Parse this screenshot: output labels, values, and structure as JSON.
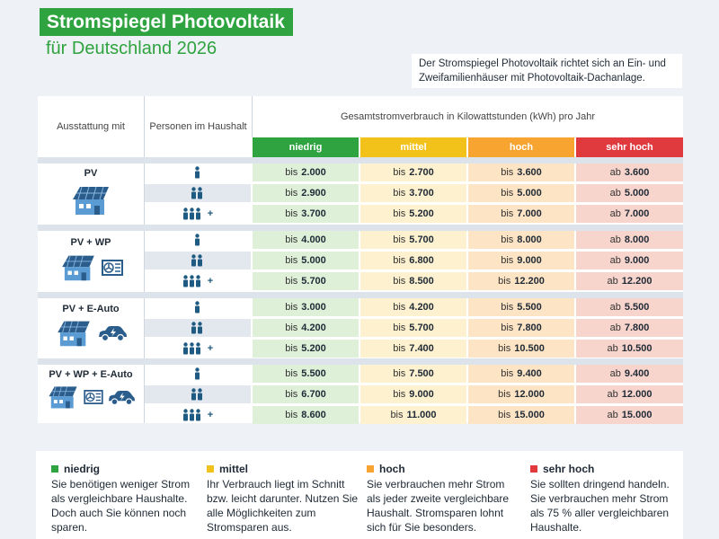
{
  "title": "Stromspiegel Photovoltaik",
  "subtitle": "für Deutschland 2026",
  "note": "Der Stromspiegel Photovoltaik richtet sich an Ein- und Zweifamilienhäuser mit Photovoltaik-Dachanlage.",
  "headers": {
    "equipment": "Ausstattung mit",
    "persons": "Personen im Haushalt",
    "consumption": "Gesamtstromverbrauch in Kilowattstunden (kWh) pro Jahr"
  },
  "colors": {
    "niedrig": "#2ea33f",
    "mittel": "#f2c21b",
    "hoch": "#f7a430",
    "sehr_hoch": "#e0393e",
    "niedrig_bg": "#dff0d9",
    "mittel_bg": "#fdf1cf",
    "hoch_bg": "#fde4c4",
    "sehr_hoch_bg": "#f8d5cc"
  },
  "chart_data": {
    "type": "table",
    "title": "Stromspiegel Photovoltaik für Deutschland 2026",
    "unit": "kWh pro Jahr",
    "categories": [
      "niedrig",
      "mittel",
      "hoch",
      "sehr hoch"
    ],
    "groups": [
      {
        "name": "PV",
        "rows": [
          {
            "persons": "1",
            "persons_plus": "",
            "values": [
              {
                "prefix": "bis",
                "value": "2.000"
              },
              {
                "prefix": "bis",
                "value": "2.700"
              },
              {
                "prefix": "bis",
                "value": "3.600"
              },
              {
                "prefix": "ab",
                "value": "3.600"
              }
            ]
          },
          {
            "persons": "2",
            "persons_plus": "",
            "values": [
              {
                "prefix": "bis",
                "value": "2.900"
              },
              {
                "prefix": "bis",
                "value": "3.700"
              },
              {
                "prefix": "bis",
                "value": "5.000"
              },
              {
                "prefix": "ab",
                "value": "5.000"
              }
            ]
          },
          {
            "persons": "3+",
            "persons_plus": "+",
            "values": [
              {
                "prefix": "bis",
                "value": "3.700"
              },
              {
                "prefix": "bis",
                "value": "5.200"
              },
              {
                "prefix": "bis",
                "value": "7.000"
              },
              {
                "prefix": "ab",
                "value": "7.000"
              }
            ]
          }
        ]
      },
      {
        "name": "PV + WP",
        "rows": [
          {
            "persons": "1",
            "persons_plus": "",
            "values": [
              {
                "prefix": "bis",
                "value": "4.000"
              },
              {
                "prefix": "bis",
                "value": "5.700"
              },
              {
                "prefix": "bis",
                "value": "8.000"
              },
              {
                "prefix": "ab",
                "value": "8.000"
              }
            ]
          },
          {
            "persons": "2",
            "persons_plus": "",
            "values": [
              {
                "prefix": "bis",
                "value": "5.000"
              },
              {
                "prefix": "bis",
                "value": "6.800"
              },
              {
                "prefix": "bis",
                "value": "9.000"
              },
              {
                "prefix": "ab",
                "value": "9.000"
              }
            ]
          },
          {
            "persons": "3+",
            "persons_plus": "+",
            "values": [
              {
                "prefix": "bis",
                "value": "5.700"
              },
              {
                "prefix": "bis",
                "value": "8.500"
              },
              {
                "prefix": "bis",
                "value": "12.200"
              },
              {
                "prefix": "ab",
                "value": "12.200"
              }
            ]
          }
        ]
      },
      {
        "name": "PV + E-Auto",
        "rows": [
          {
            "persons": "1",
            "persons_plus": "",
            "values": [
              {
                "prefix": "bis",
                "value": "3.000"
              },
              {
                "prefix": "bis",
                "value": "4.200"
              },
              {
                "prefix": "bis",
                "value": "5.500"
              },
              {
                "prefix": "ab",
                "value": "5.500"
              }
            ]
          },
          {
            "persons": "2",
            "persons_plus": "",
            "values": [
              {
                "prefix": "bis",
                "value": "4.200"
              },
              {
                "prefix": "bis",
                "value": "5.700"
              },
              {
                "prefix": "bis",
                "value": "7.800"
              },
              {
                "prefix": "ab",
                "value": "7.800"
              }
            ]
          },
          {
            "persons": "3+",
            "persons_plus": "+",
            "values": [
              {
                "prefix": "bis",
                "value": "5.200"
              },
              {
                "prefix": "bis",
                "value": "7.400"
              },
              {
                "prefix": "bis",
                "value": "10.500"
              },
              {
                "prefix": "ab",
                "value": "10.500"
              }
            ]
          }
        ]
      },
      {
        "name": "PV + WP + E-Auto",
        "rows": [
          {
            "persons": "1",
            "persons_plus": "",
            "values": [
              {
                "prefix": "bis",
                "value": "5.500"
              },
              {
                "prefix": "bis",
                "value": "7.500"
              },
              {
                "prefix": "bis",
                "value": "9.400"
              },
              {
                "prefix": "ab",
                "value": "9.400"
              }
            ]
          },
          {
            "persons": "2",
            "persons_plus": "",
            "values": [
              {
                "prefix": "bis",
                "value": "6.700"
              },
              {
                "prefix": "bis",
                "value": "9.000"
              },
              {
                "prefix": "bis",
                "value": "12.000"
              },
              {
                "prefix": "ab",
                "value": "12.000"
              }
            ]
          },
          {
            "persons": "3+",
            "persons_plus": "+",
            "values": [
              {
                "prefix": "bis",
                "value": "8.600"
              },
              {
                "prefix": "bis",
                "value": "11.000"
              },
              {
                "prefix": "bis",
                "value": "15.000"
              },
              {
                "prefix": "ab",
                "value": "15.000"
              }
            ]
          }
        ]
      }
    ]
  },
  "legend": [
    {
      "label": "niedrig",
      "text": "Sie benötigen weniger Strom als vergleichbare Haushalte. Doch auch Sie können noch sparen."
    },
    {
      "label": "mittel",
      "text": "Ihr Verbrauch liegt im Schnitt bzw. leicht darunter. Nutzen Sie alle Möglichkeiten zum Stromsparen aus."
    },
    {
      "label": "hoch",
      "text": "Sie verbrauchen mehr Strom als jeder zweite vergleichbare Haushalt. Stromsparen lohnt sich für Sie besonders."
    },
    {
      "label": "sehr hoch",
      "text": "Sie sollten dringend handeln. Sie verbrauchen mehr Strom als 75 % aller vergleichbaren Haushalte."
    }
  ]
}
